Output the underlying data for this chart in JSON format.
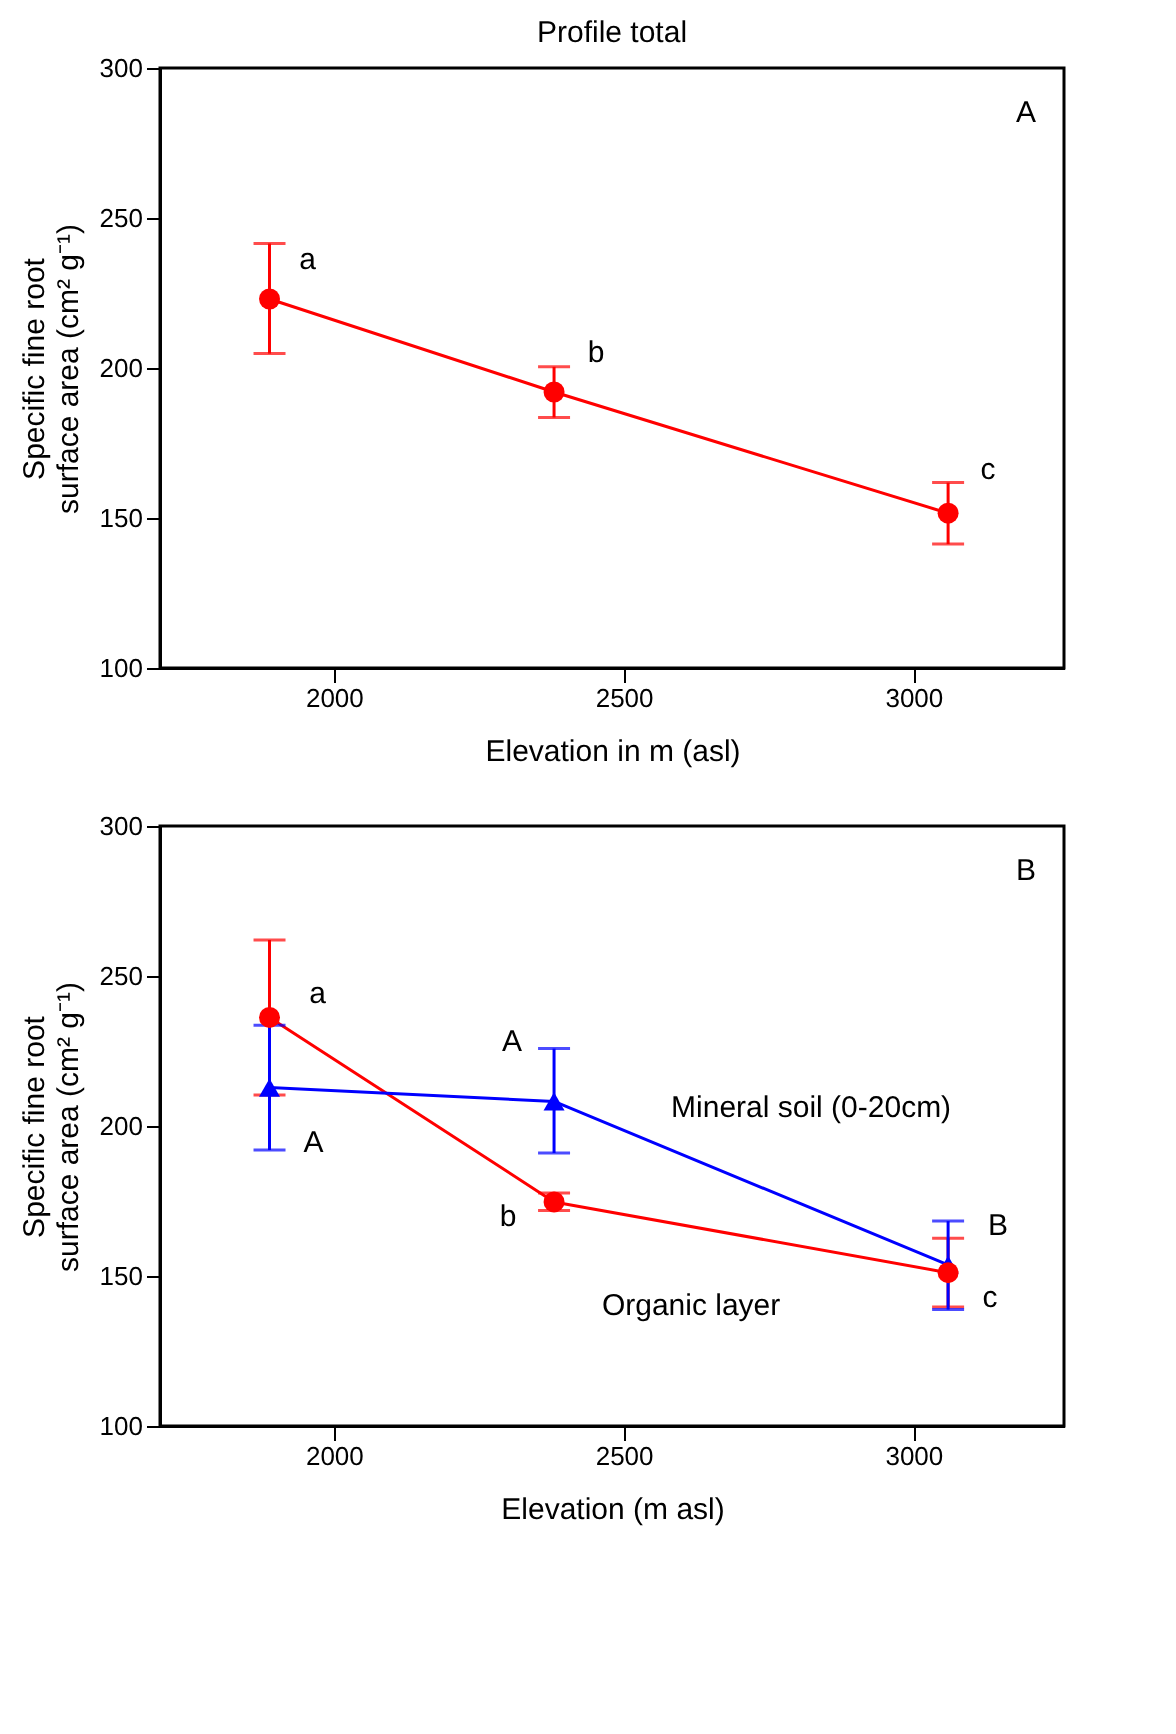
{
  "chart_data": [
    {
      "type": "line",
      "title": "Profile total",
      "xlabel": "Elevation in m (asl)",
      "ylabel": "Specific fine root\nsurface area (cm² g⁻¹)",
      "xlim": [
        1700,
        3260
      ],
      "xticks": [
        2000,
        2500,
        3000
      ],
      "ylim": [
        100,
        300
      ],
      "yticks": [
        100,
        150,
        200,
        250,
        300
      ],
      "grid": false,
      "series": [
        {
          "color": "#ff0000",
          "marker": "circle",
          "line_style": "solid",
          "x": [
            1889,
            2380,
            3060
          ],
          "values": [
            223,
            192,
            151.6
          ],
          "errors": [
            [
              204.8,
              241.5
            ],
            [
              183.5,
              200.4
            ],
            [
              141.3,
              161.8
            ]
          ]
        }
      ],
      "annotations": [
        {
          "text": "a",
          "x": 1889,
          "y": 223
        },
        {
          "text": "b",
          "x": 2380,
          "y": 192
        },
        {
          "text": "c",
          "x": 3060,
          "y": 151.6
        },
        "A"
      ]
    },
    {
      "type": "line",
      "xlabel": "Elevation (m asl)",
      "ylabel": "Specific fine root\nsurface area (cm² g⁻¹)",
      "xlim": [
        1700,
        3260
      ],
      "xticks": [
        2000,
        2500,
        3000
      ],
      "ylim": [
        100,
        300
      ],
      "yticks": [
        100,
        150,
        200,
        250,
        300
      ],
      "grid": false,
      "series": [
        {
          "name": "Organic layer",
          "color": "#ff0000",
          "marker": "circle",
          "line_style": "solid",
          "x": [
            1889,
            2380,
            3060
          ],
          "values": [
            236.2,
            174.7,
            151.1
          ],
          "errors": [
            [
              210.3,
              262
            ],
            [
              171.8,
              177.7
            ],
            [
              139.7,
              162.6
            ]
          ]
        },
        {
          "name": "Mineral soil (0-20cm)",
          "color": "#0000ff",
          "marker": "triangle",
          "line_style": "solid",
          "x": [
            1889,
            2380,
            3060
          ],
          "values": [
            212.8,
            208.2,
            153.7
          ],
          "errors": [
            [
              192,
              233.6
            ],
            [
              191,
              225.8
            ],
            [
              138.8,
              168.3
            ]
          ]
        }
      ],
      "annotations": [
        {
          "text": "a",
          "x": 1889,
          "y": 236.2
        },
        {
          "text": "A",
          "x": 2380,
          "y": 208.2
        },
        {
          "text": "A",
          "x": 1889,
          "y": 212.8
        },
        {
          "text": "b",
          "x": 2380,
          "y": 174.7
        },
        {
          "text": "B",
          "x": 3060,
          "y": 153.7
        },
        {
          "text": "c",
          "x": 3060,
          "y": 151.1
        },
        "B"
      ]
    }
  ]
}
